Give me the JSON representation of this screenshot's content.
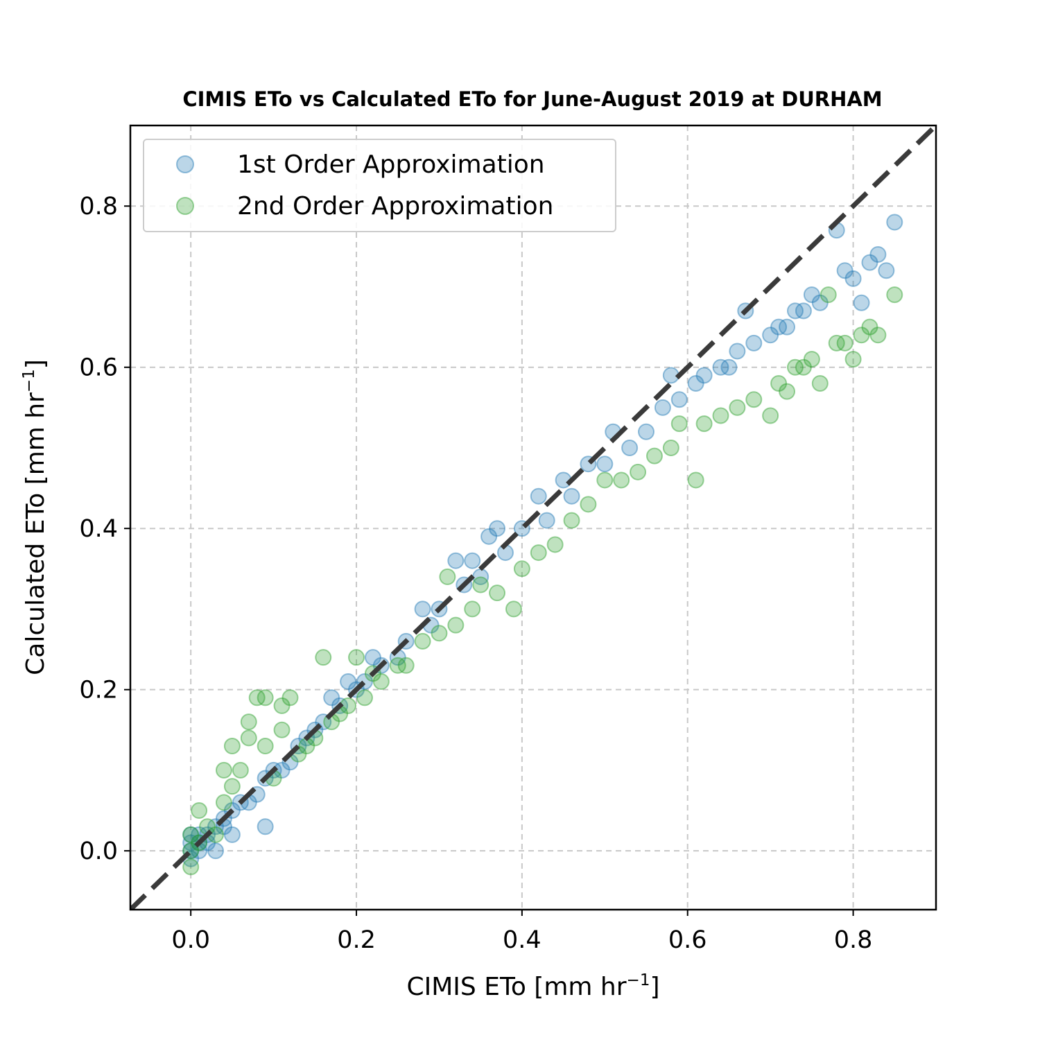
{
  "chart_data": {
    "type": "scatter",
    "title": "CIMIS ETo vs Calculated ETo for June-August 2019 at DURHAM",
    "xlabel": {
      "main": "CIMIS ETo [mm hr",
      "sup": "−1",
      "end": "]"
    },
    "ylabel": {
      "main": "Calculated ETo [mm hr",
      "sup": "−1",
      "end": "]"
    },
    "xlim": [
      -0.073,
      0.9
    ],
    "ylim": [
      -0.073,
      0.9
    ],
    "xticks": [
      0.0,
      0.2,
      0.4,
      0.6,
      0.8
    ],
    "yticks": [
      0.0,
      0.2,
      0.4,
      0.6,
      0.8
    ],
    "xtick_labels": [
      "0.0",
      "0.2",
      "0.4",
      "0.6",
      "0.8"
    ],
    "ytick_labels": [
      "0.0",
      "0.2",
      "0.4",
      "0.6",
      "0.8"
    ],
    "grid": true,
    "legend_position": "upper-left",
    "reference_line": {
      "style": "dashed",
      "color": "#3a3a3a",
      "slope": 1,
      "intercept": 0
    },
    "series": [
      {
        "name": "1st Order Approximation",
        "color": "#1f77b4",
        "points": [
          [
            0.0,
            0.0
          ],
          [
            0.0,
            -0.01
          ],
          [
            0.0,
            0.01
          ],
          [
            0.0,
            0.02
          ],
          [
            0.01,
            0.0
          ],
          [
            0.01,
            0.01
          ],
          [
            0.01,
            0.02
          ],
          [
            0.02,
            0.01
          ],
          [
            0.02,
            0.02
          ],
          [
            0.03,
            0.0
          ],
          [
            0.03,
            0.03
          ],
          [
            0.04,
            0.03
          ],
          [
            0.04,
            0.04
          ],
          [
            0.05,
            0.02
          ],
          [
            0.05,
            0.05
          ],
          [
            0.06,
            0.06
          ],
          [
            0.07,
            0.06
          ],
          [
            0.08,
            0.07
          ],
          [
            0.09,
            0.03
          ],
          [
            0.09,
            0.09
          ],
          [
            0.1,
            0.1
          ],
          [
            0.11,
            0.1
          ],
          [
            0.12,
            0.11
          ],
          [
            0.13,
            0.13
          ],
          [
            0.14,
            0.14
          ],
          [
            0.15,
            0.15
          ],
          [
            0.16,
            0.16
          ],
          [
            0.17,
            0.19
          ],
          [
            0.18,
            0.18
          ],
          [
            0.19,
            0.21
          ],
          [
            0.2,
            0.2
          ],
          [
            0.21,
            0.21
          ],
          [
            0.22,
            0.24
          ],
          [
            0.23,
            0.23
          ],
          [
            0.25,
            0.24
          ],
          [
            0.26,
            0.26
          ],
          [
            0.28,
            0.3
          ],
          [
            0.29,
            0.28
          ],
          [
            0.3,
            0.3
          ],
          [
            0.32,
            0.36
          ],
          [
            0.33,
            0.33
          ],
          [
            0.34,
            0.36
          ],
          [
            0.35,
            0.34
          ],
          [
            0.36,
            0.39
          ],
          [
            0.37,
            0.4
          ],
          [
            0.38,
            0.37
          ],
          [
            0.4,
            0.4
          ],
          [
            0.42,
            0.44
          ],
          [
            0.43,
            0.41
          ],
          [
            0.45,
            0.46
          ],
          [
            0.46,
            0.44
          ],
          [
            0.48,
            0.48
          ],
          [
            0.5,
            0.48
          ],
          [
            0.51,
            0.52
          ],
          [
            0.53,
            0.5
          ],
          [
            0.55,
            0.52
          ],
          [
            0.57,
            0.55
          ],
          [
            0.58,
            0.59
          ],
          [
            0.59,
            0.56
          ],
          [
            0.61,
            0.58
          ],
          [
            0.62,
            0.59
          ],
          [
            0.64,
            0.6
          ],
          [
            0.65,
            0.6
          ],
          [
            0.66,
            0.62
          ],
          [
            0.67,
            0.67
          ],
          [
            0.68,
            0.63
          ],
          [
            0.7,
            0.64
          ],
          [
            0.71,
            0.65
          ],
          [
            0.72,
            0.65
          ],
          [
            0.73,
            0.67
          ],
          [
            0.74,
            0.67
          ],
          [
            0.75,
            0.69
          ],
          [
            0.76,
            0.68
          ],
          [
            0.78,
            0.77
          ],
          [
            0.79,
            0.72
          ],
          [
            0.8,
            0.71
          ],
          [
            0.81,
            0.68
          ],
          [
            0.82,
            0.73
          ],
          [
            0.83,
            0.74
          ],
          [
            0.84,
            0.72
          ],
          [
            0.85,
            0.78
          ]
        ]
      },
      {
        "name": "2nd Order Approximation",
        "color": "#2ca02c",
        "points": [
          [
            0.0,
            -0.02
          ],
          [
            0.0,
            0.0
          ],
          [
            0.0,
            0.02
          ],
          [
            0.01,
            0.05
          ],
          [
            0.01,
            0.01
          ],
          [
            0.02,
            0.03
          ],
          [
            0.03,
            0.02
          ],
          [
            0.04,
            0.1
          ],
          [
            0.04,
            0.06
          ],
          [
            0.05,
            0.08
          ],
          [
            0.05,
            0.13
          ],
          [
            0.06,
            0.1
          ],
          [
            0.07,
            0.14
          ],
          [
            0.07,
            0.16
          ],
          [
            0.08,
            0.19
          ],
          [
            0.09,
            0.19
          ],
          [
            0.09,
            0.13
          ],
          [
            0.1,
            0.09
          ],
          [
            0.11,
            0.18
          ],
          [
            0.11,
            0.15
          ],
          [
            0.12,
            0.19
          ],
          [
            0.13,
            0.12
          ],
          [
            0.14,
            0.13
          ],
          [
            0.15,
            0.14
          ],
          [
            0.16,
            0.24
          ],
          [
            0.17,
            0.16
          ],
          [
            0.18,
            0.17
          ],
          [
            0.19,
            0.18
          ],
          [
            0.2,
            0.24
          ],
          [
            0.21,
            0.19
          ],
          [
            0.22,
            0.22
          ],
          [
            0.23,
            0.21
          ],
          [
            0.25,
            0.23
          ],
          [
            0.26,
            0.23
          ],
          [
            0.28,
            0.26
          ],
          [
            0.3,
            0.27
          ],
          [
            0.31,
            0.34
          ],
          [
            0.32,
            0.28
          ],
          [
            0.34,
            0.3
          ],
          [
            0.35,
            0.33
          ],
          [
            0.37,
            0.32
          ],
          [
            0.39,
            0.3
          ],
          [
            0.4,
            0.35
          ],
          [
            0.42,
            0.37
          ],
          [
            0.44,
            0.38
          ],
          [
            0.46,
            0.41
          ],
          [
            0.48,
            0.43
          ],
          [
            0.5,
            0.46
          ],
          [
            0.52,
            0.46
          ],
          [
            0.54,
            0.47
          ],
          [
            0.56,
            0.49
          ],
          [
            0.58,
            0.5
          ],
          [
            0.59,
            0.53
          ],
          [
            0.61,
            0.46
          ],
          [
            0.62,
            0.53
          ],
          [
            0.64,
            0.54
          ],
          [
            0.66,
            0.55
          ],
          [
            0.68,
            0.56
          ],
          [
            0.7,
            0.54
          ],
          [
            0.71,
            0.58
          ],
          [
            0.72,
            0.57
          ],
          [
            0.73,
            0.6
          ],
          [
            0.74,
            0.6
          ],
          [
            0.75,
            0.61
          ],
          [
            0.76,
            0.58
          ],
          [
            0.77,
            0.69
          ],
          [
            0.78,
            0.63
          ],
          [
            0.79,
            0.63
          ],
          [
            0.8,
            0.61
          ],
          [
            0.81,
            0.64
          ],
          [
            0.82,
            0.65
          ],
          [
            0.83,
            0.64
          ],
          [
            0.85,
            0.69
          ]
        ]
      }
    ]
  }
}
